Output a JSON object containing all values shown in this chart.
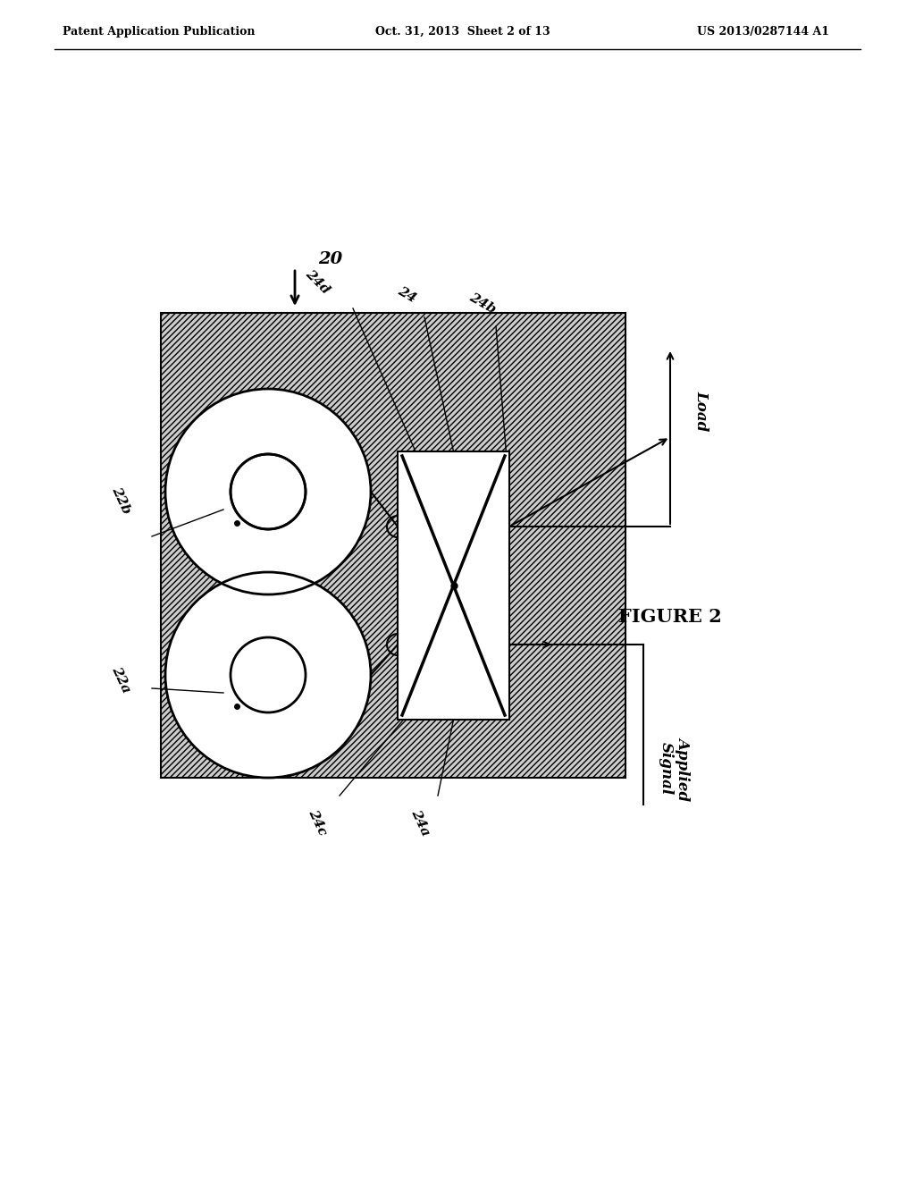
{
  "bg_color": "#ffffff",
  "header_left": "Patent Application Publication",
  "header_mid": "Oct. 31, 2013  Sheet 2 of 13",
  "header_right": "US 2013/0287144 A1",
  "figure_label": "FIGURE 2",
  "ref_20": "20",
  "ref_22b": "22b",
  "ref_22a": "22a",
  "ref_24": "24",
  "ref_24a": "24a",
  "ref_24b": "24b",
  "ref_24c": "24c",
  "ref_24d": "24d",
  "label_load": "Load",
  "label_applied": "Applied\nSignal",
  "hatch_color": "#aaaaaa",
  "box_color": "#000000",
  "coil_color": "#000000"
}
